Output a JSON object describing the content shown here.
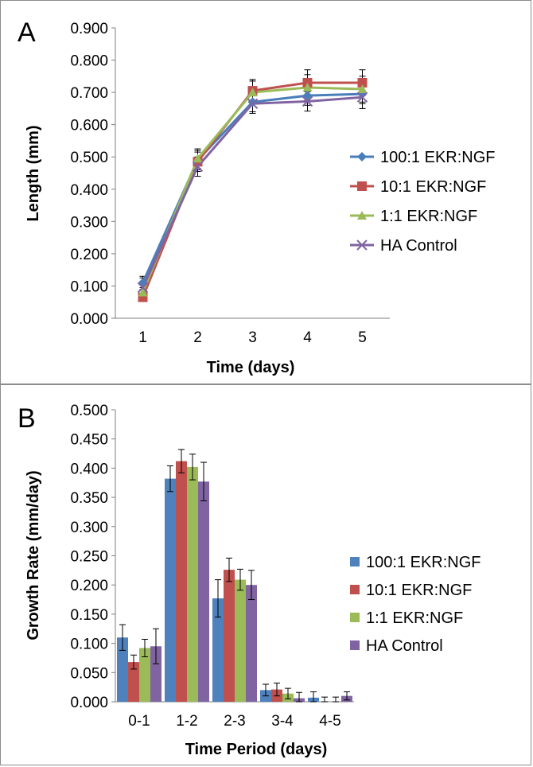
{
  "chart_data": [
    {
      "type": "line",
      "panel_label": "A",
      "xlabel": "Time (days)",
      "ylabel": "Length (mm)",
      "x": [
        1,
        2,
        3,
        4,
        5
      ],
      "ylim": [
        0,
        0.9
      ],
      "yticks": [
        "0.000",
        "0.100",
        "0.200",
        "0.300",
        "0.400",
        "0.500",
        "0.600",
        "0.700",
        "0.800",
        "0.900"
      ],
      "grid": false,
      "legend": "right",
      "series": [
        {
          "name": "100:1 EKR:NGF",
          "color": "#4a7ebb",
          "marker": "diamond",
          "values": [
            0.11,
            0.49,
            0.67,
            0.69,
            0.695
          ],
          "errors": [
            0.02,
            0.03,
            0.03,
            0.03,
            0.03
          ]
        },
        {
          "name": "10:1 EKR:NGF",
          "color": "#c0504d",
          "marker": "square",
          "values": [
            0.065,
            0.485,
            0.705,
            0.73,
            0.73
          ],
          "errors": [
            0.01,
            0.03,
            0.035,
            0.04,
            0.04
          ]
        },
        {
          "name": "1:1 EKR:NGF",
          "color": "#9bbb59",
          "marker": "triangle",
          "values": [
            0.08,
            0.495,
            0.7,
            0.715,
            0.71
          ],
          "errors": [
            0.015,
            0.03,
            0.035,
            0.04,
            0.04
          ]
        },
        {
          "name": "HA Control",
          "color": "#8064a2",
          "marker": "x",
          "values": [
            0.095,
            0.47,
            0.665,
            0.672,
            0.685
          ],
          "errors": [
            0.03,
            0.03,
            0.03,
            0.03,
            0.035
          ]
        }
      ]
    },
    {
      "type": "bar",
      "panel_label": "B",
      "xlabel": "Time Period (days)",
      "ylabel": "Growth Rate (mm/day)",
      "categories": [
        "0-1",
        "1-2",
        "2-3",
        "3-4",
        "4-5"
      ],
      "ylim": [
        0,
        0.5
      ],
      "yticks": [
        "0.000",
        "0.050",
        "0.100",
        "0.150",
        "0.200",
        "0.250",
        "0.300",
        "0.350",
        "0.400",
        "0.450",
        "0.500"
      ],
      "grid": false,
      "legend": "right",
      "series": [
        {
          "name": "100:1 EKR:NGF",
          "color": "#4f81bd",
          "values": [
            0.11,
            0.382,
            0.177,
            0.02,
            0.007
          ],
          "errors": [
            0.022,
            0.022,
            0.032,
            0.01,
            0.01
          ]
        },
        {
          "name": "10:1 EKR:NGF",
          "color": "#c0504d",
          "values": [
            0.068,
            0.412,
            0.226,
            0.021,
            0.0
          ],
          "errors": [
            0.012,
            0.02,
            0.02,
            0.011,
            0.008
          ]
        },
        {
          "name": "1:1 EKR:NGF",
          "color": "#9bbb59",
          "values": [
            0.092,
            0.402,
            0.209,
            0.014,
            0.0
          ],
          "errors": [
            0.015,
            0.022,
            0.018,
            0.009,
            0.008
          ]
        },
        {
          "name": "HA Control",
          "color": "#8064a2",
          "values": [
            0.095,
            0.377,
            0.2,
            0.006,
            0.01
          ],
          "errors": [
            0.03,
            0.033,
            0.025,
            0.01,
            0.007
          ]
        }
      ]
    }
  ]
}
